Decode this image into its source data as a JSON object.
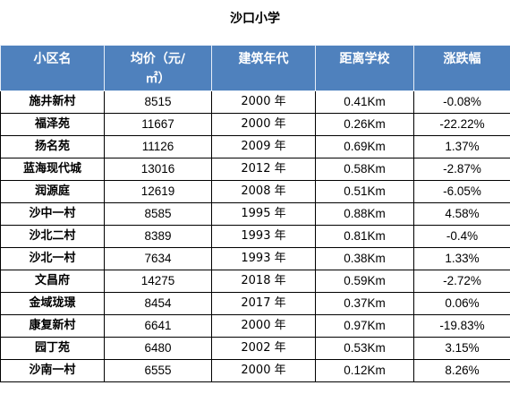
{
  "title": "沙口小学",
  "headers": {
    "name": "小区名",
    "price_line1": "均价（元/",
    "price_line2": "㎡）",
    "year": "建筑年代",
    "distance": "距离学校",
    "change": "涨跌幅"
  },
  "rows": [
    {
      "name": "施井新村",
      "price": "8515",
      "year": "2000 年",
      "distance": "0.41Km",
      "change": "-0.08%"
    },
    {
      "name": "福泽苑",
      "price": "11667",
      "year": "2000 年",
      "distance": "0.26Km",
      "change": "-22.22%"
    },
    {
      "name": "扬名苑",
      "price": "11126",
      "year": "2009 年",
      "distance": "0.69Km",
      "change": "1.37%"
    },
    {
      "name": "蓝海现代城",
      "price": "13016",
      "year": "2012 年",
      "distance": "0.58Km",
      "change": "-2.87%"
    },
    {
      "name": "润源庭",
      "price": "12619",
      "year": "2008 年",
      "distance": "0.51Km",
      "change": "-6.05%"
    },
    {
      "name": "沙中一村",
      "price": "8585",
      "year": "1995 年",
      "distance": "0.88Km",
      "change": "4.58%"
    },
    {
      "name": "沙北二村",
      "price": "8389",
      "year": "1993 年",
      "distance": "0.81Km",
      "change": "-0.4%"
    },
    {
      "name": "沙北一村",
      "price": "7634",
      "year": "1993 年",
      "distance": "0.38Km",
      "change": "1.33%"
    },
    {
      "name": "文昌府",
      "price": "14275",
      "year": "2018 年",
      "distance": "0.59Km",
      "change": "-2.72%"
    },
    {
      "name": "金域珑璟",
      "price": "8454",
      "year": "2017 年",
      "distance": "0.37Km",
      "change": "0.06%"
    },
    {
      "name": "康复新村",
      "price": "6641",
      "year": "2000 年",
      "distance": "0.97Km",
      "change": "-19.83%"
    },
    {
      "name": "园丁苑",
      "price": "6480",
      "year": "2002 年",
      "distance": "0.53Km",
      "change": "3.15%"
    },
    {
      "name": "沙南一村",
      "price": "6555",
      "year": "2000 年",
      "distance": "0.12Km",
      "change": "8.26%"
    }
  ],
  "colors": {
    "header_bg": "#4f81bd",
    "header_text": "#ffffff"
  }
}
